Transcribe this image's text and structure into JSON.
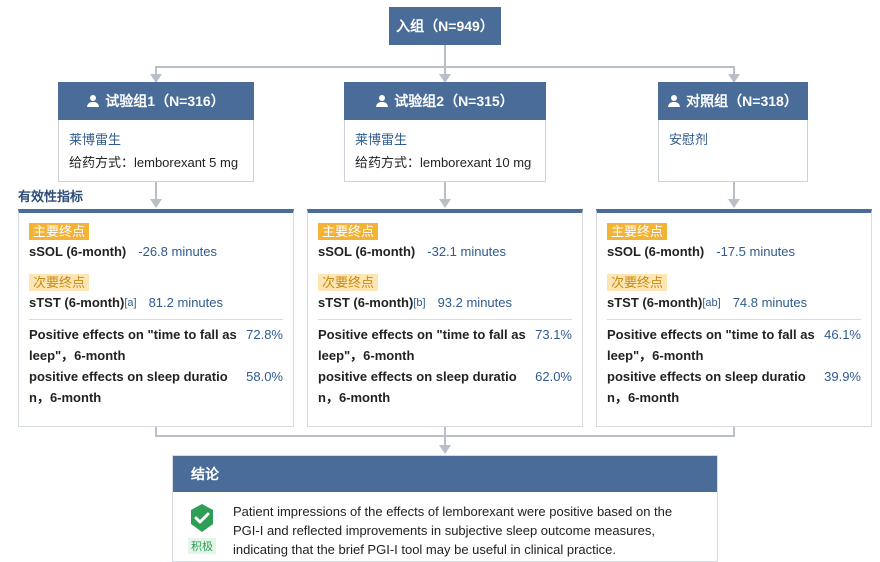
{
  "top": {
    "label": "入组（N=949）"
  },
  "section_title": "有效性指标",
  "groups": [
    {
      "title": "试验组1（N=316）",
      "drug": "莱博雷生",
      "dose": "给药方式：lemborexant 5 mg",
      "primary_tag": "主要终点",
      "primary_label": "sSOL (6-month)",
      "primary_value": "-26.8 minutes",
      "secondary_tag": "次要终点",
      "secondary_label": "sTST (6-month)",
      "secondary_sup": "[a]",
      "secondary_value": "81.2 minutes",
      "pe1_text": "Positive effects on \"time to fall asleep\"，6-month",
      "pe1_text_a": "Positive effects on \"time to fall as",
      "pe1_text_b": "leep\"，6-month",
      "pe1_value": "72.8%",
      "pe2_text_a": "positive effects on sleep duratio",
      "pe2_text_b": "n，6-month",
      "pe2_value": "58.0%"
    },
    {
      "title": "试验组2（N=315）",
      "drug": "莱博雷生",
      "dose": "给药方式：lemborexant 10 mg",
      "primary_tag": "主要终点",
      "primary_label": "sSOL (6-month)",
      "primary_value": "-32.1 minutes",
      "secondary_tag": "次要终点",
      "secondary_label": "sTST (6-month)",
      "secondary_sup": "[b]",
      "secondary_value": "93.2 minutes",
      "pe1_text_a": "Positive effects on \"time to fall as",
      "pe1_text_b": "leep\"，6-month",
      "pe1_value": "73.1%",
      "pe2_text_a": "positive effects on sleep duratio",
      "pe2_text_b": "n，6-month",
      "pe2_value": "62.0%"
    },
    {
      "title": "对照组（N=318）",
      "drug": "安慰剂",
      "dose": "",
      "primary_tag": "主要终点",
      "primary_label": "sSOL (6-month)",
      "primary_value": "-17.5 minutes",
      "secondary_tag": "次要终点",
      "secondary_label": "sTST (6-month)",
      "secondary_sup": "[ab]",
      "secondary_value": "74.8 minutes",
      "pe1_text_a": "Positive effects on \"time to fall as",
      "pe1_text_b": "leep\"，6-month",
      "pe1_value": "46.1%",
      "pe2_text_a": "positive effects on sleep duratio",
      "pe2_text_b": "n，6-month",
      "pe2_value": "39.9%"
    }
  ],
  "conclusion": {
    "title": "结论",
    "badge_label": "积极",
    "icon": "check-shield-icon",
    "text": "Patient impressions of the effects of lemborexant were positive based on the PGI-I and reflected improvements in subjective sleep outcome measures, indicating that the brief PGI-I tool may be useful in clinical practice."
  },
  "colors": {
    "header_blue": "#4a6c99",
    "value_blue": "#2f5b8f",
    "primary_tag": "#f2b337",
    "badge_green": "#2e9d55"
  }
}
